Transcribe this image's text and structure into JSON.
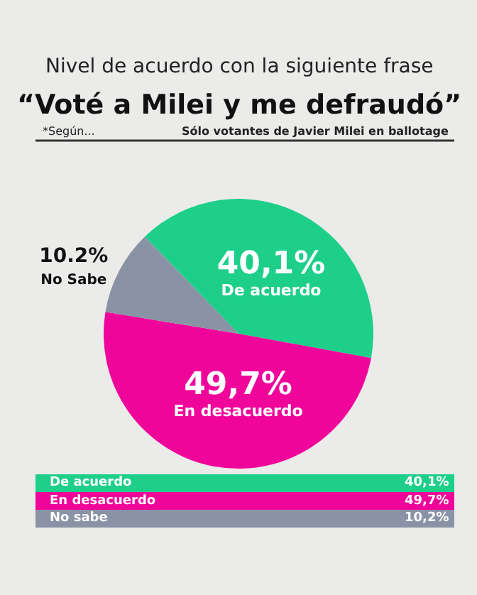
{
  "chart_data": {
    "type": "pie",
    "title": "Nivel de acuerdo con la siguiente frase",
    "subtitle": "“Voté a Milei y me defraudó”",
    "categories": [
      "De acuerdo",
      "En desacuerdo",
      "No Sabe"
    ],
    "values": [
      40.1,
      49.7,
      10.2
    ],
    "colors": [
      "#1ecf8a",
      "#f0059a",
      "#8a93a6"
    ],
    "value_labels": [
      "40,1%",
      "49,7%",
      "10.2%"
    ],
    "annotations": [
      "*Según...",
      "Sólo votantes de Javier Milei en ballotage",
      "De acuerdo",
      "40,1%",
      "En desacuerdo",
      "49,7%",
      "No sabe",
      "10,2%"
    ],
    "legend": false
  }
}
